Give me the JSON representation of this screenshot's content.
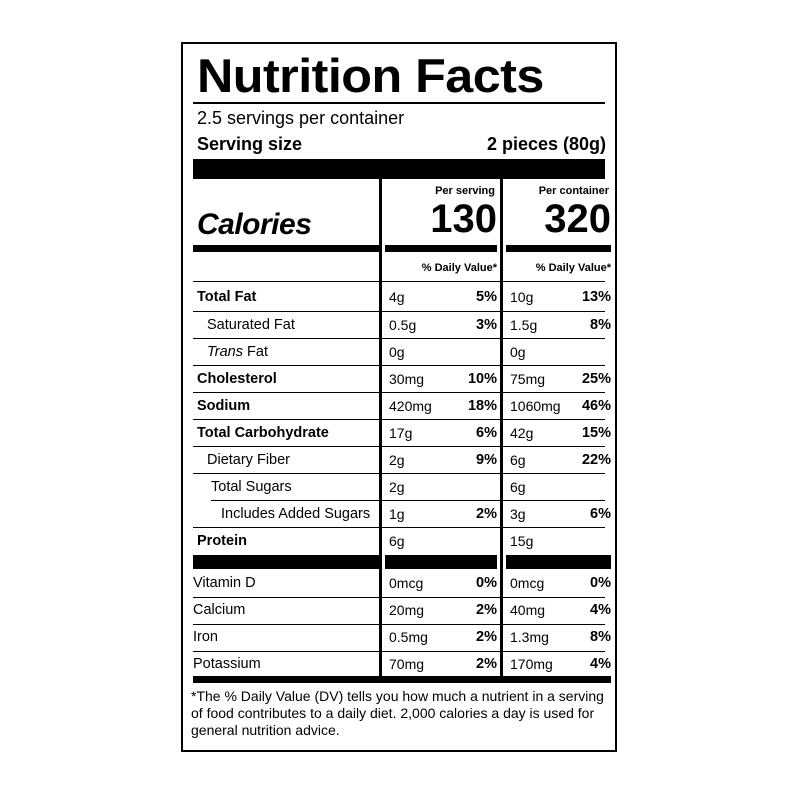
{
  "label": {
    "title": "Nutrition Facts",
    "servings_per_container": "2.5 servings per container",
    "serving_size_label": "Serving size",
    "serving_size_value": "2 pieces (80g)",
    "per_serving_header": "Per serving",
    "per_container_header": "Per container",
    "calories_label": "Calories",
    "calories_per_serving": "130",
    "calories_per_container": "320",
    "dv_header_serving": "% Daily Value*",
    "dv_header_container": "% Daily Value*",
    "footnote": "*The % Daily Value (DV) tells you how much a nutrient in a serving of food contributes to a daily diet. 2,000 calories a day is used for general nutrition advice."
  },
  "nutrients": [
    {
      "name": "Total Fat",
      "serving_amount": "4g",
      "serving_dv": "5%",
      "container_amount": "10g",
      "container_dv": "13%"
    },
    {
      "name": "Saturated Fat",
      "serving_amount": "0.5g",
      "serving_dv": "3%",
      "container_amount": "1.5g",
      "container_dv": "8%"
    },
    {
      "name_italic": "Trans",
      "name": " Fat",
      "serving_amount": "0g",
      "serving_dv": "",
      "container_amount": "0g",
      "container_dv": ""
    },
    {
      "name": "Cholesterol",
      "serving_amount": "30mg",
      "serving_dv": "10%",
      "container_amount": "75mg",
      "container_dv": "25%"
    },
    {
      "name": "Sodium",
      "serving_amount": "420mg",
      "serving_dv": "18%",
      "container_amount": "1060mg",
      "container_dv": "46%"
    },
    {
      "name": "Total Carbohydrate",
      "serving_amount": "17g",
      "serving_dv": "6%",
      "container_amount": "42g",
      "container_dv": "15%"
    },
    {
      "name": "Dietary Fiber",
      "serving_amount": "2g",
      "serving_dv": "9%",
      "container_amount": "6g",
      "container_dv": "22%"
    },
    {
      "name": "Total Sugars",
      "serving_amount": "2g",
      "serving_dv": "",
      "container_amount": "6g",
      "container_dv": ""
    },
    {
      "name": "Includes Added Sugars",
      "serving_amount": "1g",
      "serving_dv": "2%",
      "container_amount": "3g",
      "container_dv": "6%"
    },
    {
      "name": "Protein",
      "serving_amount": "6g",
      "serving_dv": "",
      "container_amount": "15g",
      "container_dv": ""
    }
  ],
  "micronutrients": [
    {
      "name": "Vitamin D",
      "serving_amount": "0mcg",
      "serving_dv": "0%",
      "container_amount": "0mcg",
      "container_dv": "0%"
    },
    {
      "name": "Calcium",
      "serving_amount": "20mg",
      "serving_dv": "2%",
      "container_amount": "40mg",
      "container_dv": "4%"
    },
    {
      "name": "Iron",
      "serving_amount": "0.5mg",
      "serving_dv": "2%",
      "container_amount": "1.3mg",
      "container_dv": "8%"
    },
    {
      "name": "Potassium",
      "serving_amount": "70mg",
      "serving_dv": "2%",
      "container_amount": "170mg",
      "container_dv": "4%"
    }
  ]
}
